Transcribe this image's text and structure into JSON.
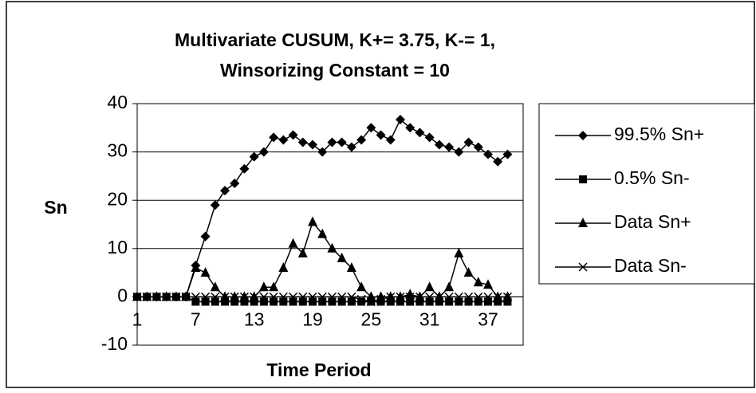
{
  "chart_data": {
    "type": "line",
    "title": [
      "Multivariate CUSUM, K+= 3.75, K-= 1,",
      "Winsorizing Constant = 10"
    ],
    "y_label": "Sn",
    "x_label": "Time Period",
    "x": [
      1,
      2,
      3,
      4,
      5,
      6,
      7,
      8,
      9,
      10,
      11,
      12,
      13,
      14,
      15,
      16,
      17,
      18,
      19,
      20,
      21,
      22,
      23,
      24,
      25,
      26,
      27,
      28,
      29,
      30,
      31,
      32,
      33,
      34,
      35,
      36,
      37,
      38,
      39
    ],
    "xlim": [
      1,
      40.6
    ],
    "xticks": [
      1,
      7,
      13,
      19,
      25,
      31,
      37
    ],
    "ylim": [
      -10,
      40
    ],
    "yticks": [
      -10,
      0,
      10,
      20,
      30,
      40
    ],
    "grid": true,
    "legend": "right",
    "series": [
      {
        "name": "99.5% Sn+",
        "color": "#000000",
        "marker": "diamond",
        "values": [
          0,
          0,
          0,
          0,
          0,
          0,
          6.5,
          12.5,
          19,
          22,
          23.5,
          26.5,
          29,
          30,
          33,
          32.5,
          33.5,
          32,
          31.5,
          30,
          32,
          32,
          31,
          32.5,
          35,
          33.5,
          32.5,
          36.7,
          35,
          34,
          33,
          31.5,
          31,
          30,
          32,
          31,
          29.5,
          28,
          29.5
        ]
      },
      {
        "name": "0.5% Sn-",
        "color": "#000000",
        "marker": "square",
        "values": [
          0,
          0,
          0,
          0,
          0,
          0,
          -1,
          -1,
          -1,
          -1,
          -1,
          -1,
          -1,
          -1,
          -1,
          -1,
          -1,
          -1,
          -1,
          -1,
          -1,
          -1,
          -1,
          -1,
          -1,
          -1,
          -1,
          -1,
          -1,
          -1,
          -1,
          -1,
          -1,
          -1,
          -1,
          -1,
          -1,
          -1,
          -1
        ]
      },
      {
        "name": "Data Sn+",
        "color": "#000000",
        "marker": "triangle",
        "values": [
          0,
          0,
          0,
          0,
          0,
          0,
          6,
          5,
          2,
          0,
          0,
          0,
          0,
          2,
          2,
          6,
          11,
          9,
          15.5,
          13,
          10,
          8,
          6,
          2,
          0,
          0,
          0,
          0,
          0.5,
          0,
          2,
          0,
          2,
          9,
          5,
          3,
          2.5,
          0,
          0
        ]
      },
      {
        "name": "Data Sn-",
        "color": "#000000",
        "marker": "x",
        "values": [
          0,
          0,
          0,
          0,
          0,
          0,
          0,
          0,
          0,
          0,
          0,
          0,
          0,
          0,
          0,
          0,
          0,
          0,
          0,
          0,
          0,
          0,
          0,
          -0.5,
          -1,
          -0.5,
          0,
          0,
          0,
          0,
          0,
          0,
          0,
          0,
          0,
          0,
          0,
          0,
          0
        ]
      }
    ]
  }
}
